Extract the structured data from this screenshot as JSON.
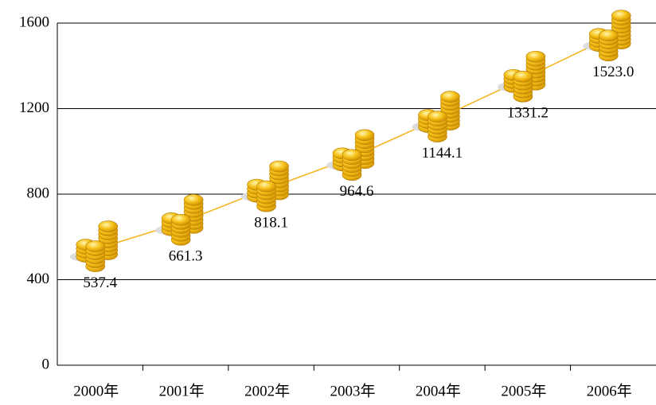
{
  "chart_data": {
    "type": "line",
    "categories": [
      "2000年",
      "2001年",
      "2002年",
      "2003年",
      "2004年",
      "2005年",
      "2006年"
    ],
    "values": [
      537.4,
      661.3,
      818.1,
      964.6,
      1144.1,
      1331.2,
      1523.0
    ],
    "value_labels": [
      "537.4",
      "661.3",
      "818.1",
      "964.6",
      "1144.1",
      "1331.2",
      "1523.0"
    ],
    "color": "#f5b31c",
    "ylim": [
      0,
      1600
    ],
    "yticks": [
      0,
      400,
      800,
      1200,
      1600
    ],
    "grid": true
  }
}
